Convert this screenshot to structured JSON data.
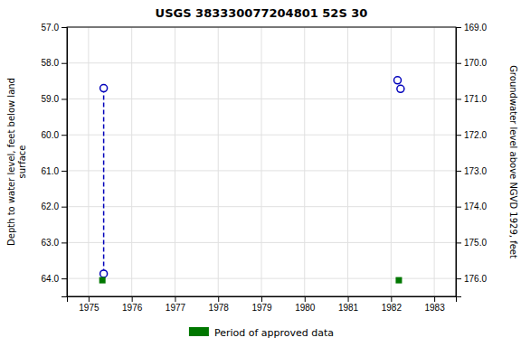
{
  "chart_data": {
    "type": "scatter",
    "title": "USGS 383330077204801 52S 30",
    "ylabel": "Depth to water level, feet below land\n surface",
    "y2label": "Groundwater level above NGVD 1929, feet",
    "xlim": [
      1974.5,
      1983.5
    ],
    "xticks": [
      1975,
      1976,
      1977,
      1978,
      1979,
      1980,
      1981,
      1982,
      1983
    ],
    "ylim": [
      64.5,
      57.0
    ],
    "yticks": [
      {
        "value": 57.0,
        "label": "57.0"
      },
      {
        "value": 58.0,
        "label": "58.0"
      },
      {
        "value": 59.0,
        "label": "59.0"
      },
      {
        "value": 60.0,
        "label": "60.0"
      },
      {
        "value": 61.0,
        "label": "61.0"
      },
      {
        "value": 62.0,
        "label": "62.0"
      },
      {
        "value": 63.0,
        "label": "63.0"
      },
      {
        "value": 64.0,
        "label": "64.0"
      }
    ],
    "y2lim": [
      176.5,
      169.0
    ],
    "y2ticks": [
      {
        "value": 176.0,
        "label": "176.0"
      },
      {
        "value": 175.0,
        "label": "175.0"
      },
      {
        "value": 174.0,
        "label": "174.0"
      },
      {
        "value": 173.0,
        "label": "173.0"
      },
      {
        "value": 172.0,
        "label": "172.0"
      },
      {
        "value": 171.0,
        "label": "171.0"
      },
      {
        "value": 170.0,
        "label": "170.0"
      },
      {
        "value": 169.0,
        "label": "169.0"
      }
    ],
    "grid": true,
    "legend": "bottom",
    "series": [
      {
        "type": "line",
        "line_style": "dashed",
        "color": "#0000bb",
        "x": [
          1975.35,
          1975.35
        ],
        "values": [
          58.7,
          63.87
        ]
      },
      {
        "type": "scatter",
        "marker": "circle",
        "color": "#0000bb",
        "x": [
          1975.35,
          1975.35,
          1982.15,
          1982.22
        ],
        "values": [
          58.7,
          63.87,
          58.48,
          58.72
        ]
      },
      {
        "type": "scatter",
        "marker": "square",
        "color": "#007700",
        "name": "Period of approved data",
        "x": [
          1975.32,
          1982.18
        ],
        "values": [
          64.05,
          64.05
        ]
      }
    ]
  }
}
